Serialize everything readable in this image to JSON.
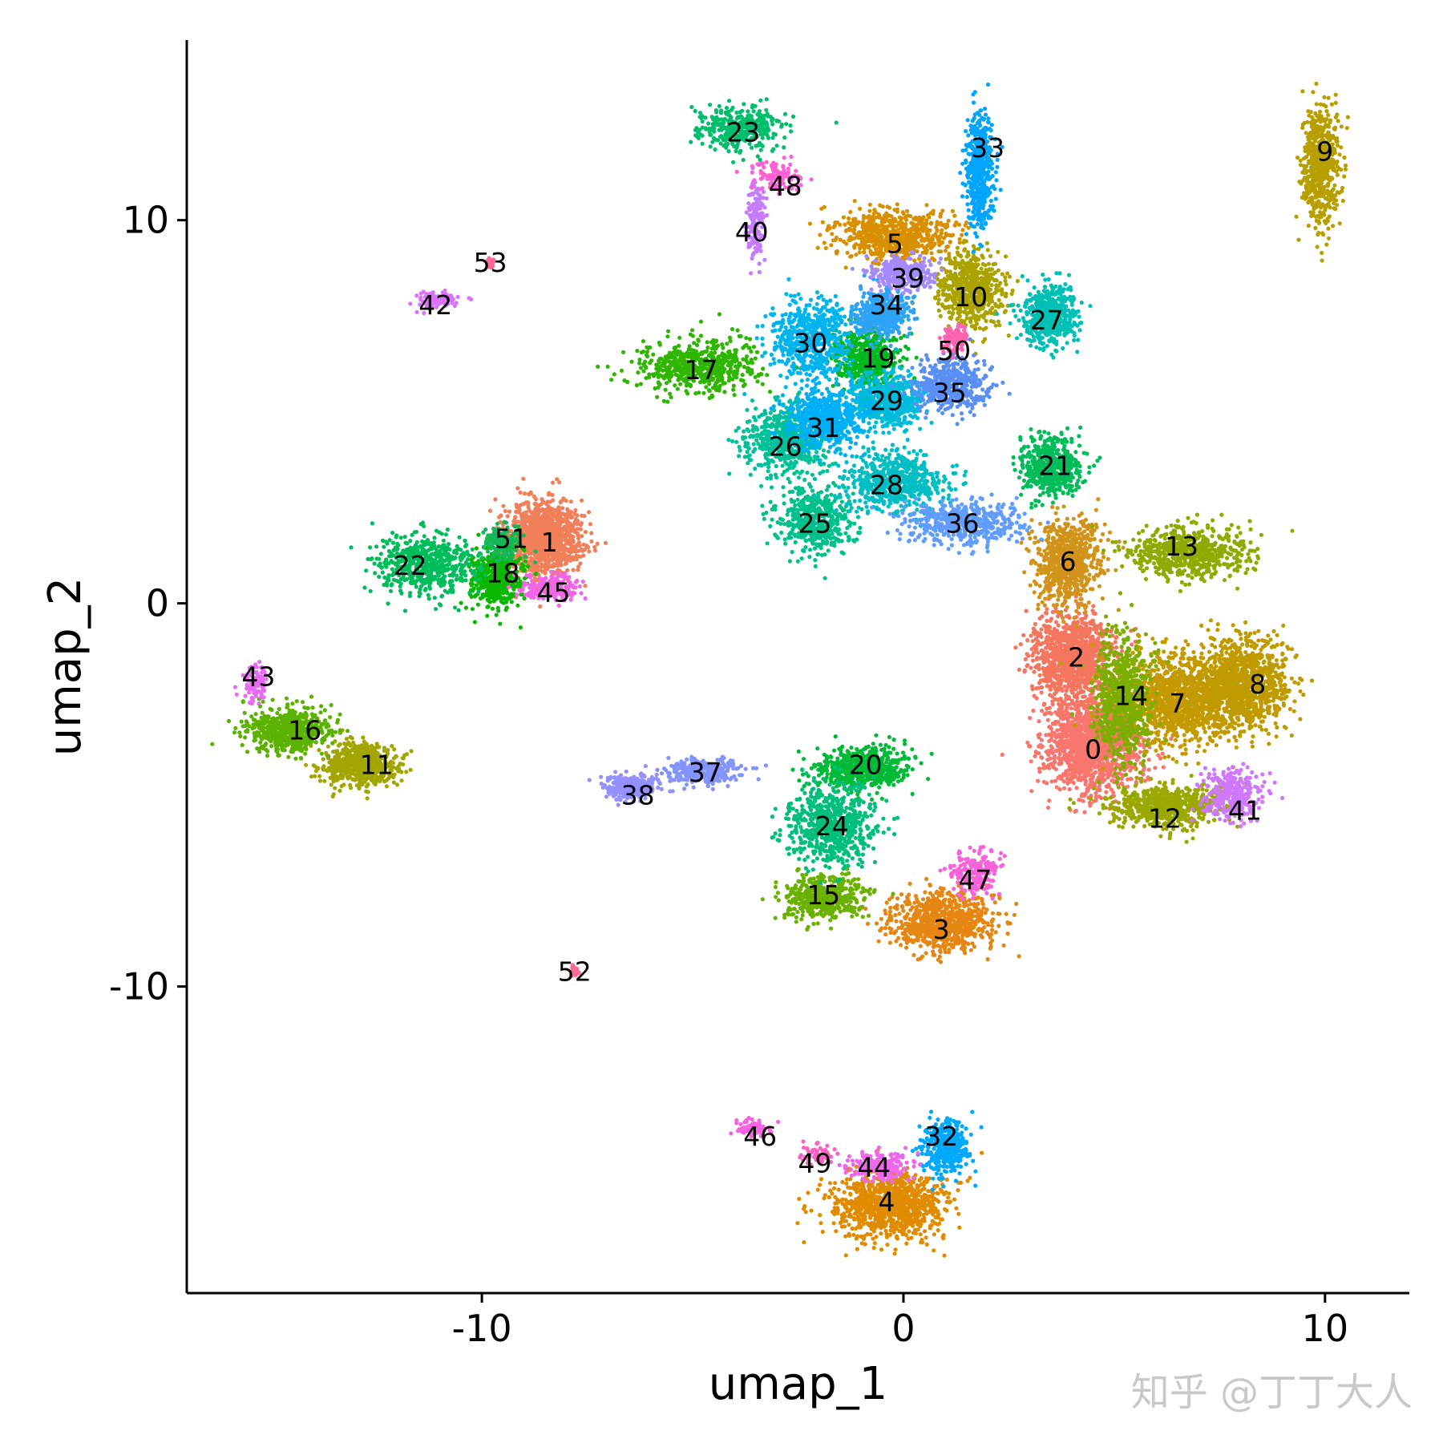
{
  "chart_data": {
    "type": "scatter",
    "xlabel": "umap_1",
    "ylabel": "umap_2",
    "xlim": [
      -17,
      12
    ],
    "ylim": [
      -18,
      14.7
    ],
    "xticks": [
      -10,
      0,
      10
    ],
    "yticks": [
      10,
      0,
      -10
    ],
    "xtick_labels": [
      "-10",
      "0",
      "10"
    ],
    "ytick_labels": [
      "10",
      "0",
      "-10"
    ],
    "grid": false,
    "legend": "none",
    "clusters": [
      {
        "id": "0",
        "x": 4.5,
        "y": -3.7,
        "sx": 1.0,
        "sy": 1.1,
        "n": 1500,
        "color": "#F8766D"
      },
      {
        "id": "1",
        "x": -8.5,
        "y": 1.7,
        "sx": 0.8,
        "sy": 0.9,
        "n": 1100,
        "color": "#F07F5A"
      },
      {
        "id": "2",
        "x": 4.0,
        "y": -1.4,
        "sx": 0.9,
        "sy": 1.0,
        "n": 1100,
        "color": "#F4765F"
      },
      {
        "id": "3",
        "x": 0.9,
        "y": -8.3,
        "sx": 1.1,
        "sy": 0.7,
        "n": 800,
        "color": "#E68613"
      },
      {
        "id": "4",
        "x": -0.3,
        "y": -15.7,
        "sx": 1.2,
        "sy": 0.8,
        "n": 1000,
        "color": "#E08B00"
      },
      {
        "id": "5",
        "x": -0.2,
        "y": 9.6,
        "sx": 1.3,
        "sy": 0.6,
        "n": 700,
        "color": "#D89000"
      },
      {
        "id": "6",
        "x": 3.9,
        "y": 1.1,
        "sx": 0.7,
        "sy": 1.0,
        "n": 700,
        "color": "#D2931A"
      },
      {
        "id": "7",
        "x": 6.5,
        "y": -2.5,
        "sx": 1.4,
        "sy": 1.1,
        "n": 1300,
        "color": "#C49A00"
      },
      {
        "id": "8",
        "x": 8.1,
        "y": -2.1,
        "sx": 1.0,
        "sy": 1.0,
        "n": 1000,
        "color": "#C09B00"
      },
      {
        "id": "9",
        "x": 9.9,
        "y": 11.4,
        "sx": 0.4,
        "sy": 1.4,
        "n": 600,
        "color": "#B79F00"
      },
      {
        "id": "10",
        "x": 1.6,
        "y": 8.2,
        "sx": 0.7,
        "sy": 0.9,
        "n": 600,
        "color": "#ABA300"
      },
      {
        "id": "11",
        "x": -12.9,
        "y": -4.2,
        "sx": 0.8,
        "sy": 0.5,
        "n": 600,
        "color": "#A3A500"
      },
      {
        "id": "12",
        "x": 6.2,
        "y": -5.3,
        "sx": 1.2,
        "sy": 0.5,
        "n": 700,
        "color": "#9BA800"
      },
      {
        "id": "13",
        "x": 6.8,
        "y": 1.3,
        "sx": 1.2,
        "sy": 0.6,
        "n": 700,
        "color": "#8FAA00"
      },
      {
        "id": "14",
        "x": 5.2,
        "y": -2.5,
        "sx": 0.6,
        "sy": 1.5,
        "n": 700,
        "color": "#7CAE00"
      },
      {
        "id": "15",
        "x": -1.9,
        "y": -7.7,
        "sx": 0.8,
        "sy": 0.5,
        "n": 500,
        "color": "#6BB100"
      },
      {
        "id": "16",
        "x": -14.6,
        "y": -3.3,
        "sx": 0.9,
        "sy": 0.5,
        "n": 600,
        "color": "#5BB300"
      },
      {
        "id": "17",
        "x": -4.9,
        "y": 6.2,
        "sx": 1.3,
        "sy": 0.6,
        "n": 600,
        "color": "#2FB600"
      },
      {
        "id": "18",
        "x": -9.6,
        "y": 0.7,
        "sx": 0.6,
        "sy": 0.7,
        "n": 500,
        "color": "#0CB702"
      },
      {
        "id": "19",
        "x": -0.9,
        "y": 6.4,
        "sx": 0.7,
        "sy": 0.7,
        "n": 500,
        "color": "#00B81F"
      },
      {
        "id": "20",
        "x": -1.0,
        "y": -4.3,
        "sx": 1.0,
        "sy": 0.5,
        "n": 600,
        "color": "#00BA38"
      },
      {
        "id": "21",
        "x": 3.5,
        "y": 3.6,
        "sx": 0.6,
        "sy": 0.7,
        "n": 500,
        "color": "#00BC59"
      },
      {
        "id": "22",
        "x": -11.3,
        "y": 1.0,
        "sx": 1.0,
        "sy": 0.7,
        "n": 600,
        "color": "#00BD5C"
      },
      {
        "id": "23",
        "x": -3.9,
        "y": 12.4,
        "sx": 0.9,
        "sy": 0.5,
        "n": 400,
        "color": "#00BE6C"
      },
      {
        "id": "24",
        "x": -1.7,
        "y": -5.8,
        "sx": 0.9,
        "sy": 0.9,
        "n": 700,
        "color": "#00BF7D"
      },
      {
        "id": "25",
        "x": -2.1,
        "y": 2.2,
        "sx": 0.8,
        "sy": 0.8,
        "n": 500,
        "color": "#00C08B"
      },
      {
        "id": "26",
        "x": -2.8,
        "y": 4.3,
        "sx": 0.9,
        "sy": 0.8,
        "n": 600,
        "color": "#00C19A"
      },
      {
        "id": "27",
        "x": 3.5,
        "y": 7.5,
        "sx": 0.6,
        "sy": 0.7,
        "n": 500,
        "color": "#00C0B5"
      },
      {
        "id": "28",
        "x": -0.2,
        "y": 3.2,
        "sx": 1.1,
        "sy": 0.7,
        "n": 600,
        "color": "#00BFC4"
      },
      {
        "id": "29",
        "x": -0.4,
        "y": 5.3,
        "sx": 0.8,
        "sy": 0.6,
        "n": 600,
        "color": "#00BBDB"
      },
      {
        "id": "30",
        "x": -2.2,
        "y": 6.9,
        "sx": 0.9,
        "sy": 0.9,
        "n": 600,
        "color": "#00B4EF"
      },
      {
        "id": "31",
        "x": -1.9,
        "y": 4.8,
        "sx": 0.8,
        "sy": 0.7,
        "n": 600,
        "color": "#00B0F6"
      },
      {
        "id": "32",
        "x": 1.0,
        "y": -14.2,
        "sx": 0.5,
        "sy": 0.6,
        "n": 400,
        "color": "#00A9FF"
      },
      {
        "id": "33",
        "x": 1.8,
        "y": 11.3,
        "sx": 0.3,
        "sy": 1.4,
        "n": 500,
        "color": "#00A5FF"
      },
      {
        "id": "34",
        "x": -0.5,
        "y": 7.6,
        "sx": 0.6,
        "sy": 0.6,
        "n": 500,
        "color": "#2DA3F5"
      },
      {
        "id": "35",
        "x": 1.1,
        "y": 5.7,
        "sx": 0.8,
        "sy": 0.6,
        "n": 500,
        "color": "#5A8FF5"
      },
      {
        "id": "36",
        "x": 1.4,
        "y": 2.1,
        "sx": 1.2,
        "sy": 0.5,
        "n": 500,
        "color": "#619CFF"
      },
      {
        "id": "37",
        "x": -4.7,
        "y": -4.4,
        "sx": 0.8,
        "sy": 0.3,
        "n": 300,
        "color": "#8494FF"
      },
      {
        "id": "38",
        "x": -6.5,
        "y": -4.8,
        "sx": 0.6,
        "sy": 0.3,
        "n": 300,
        "color": "#9590FF"
      },
      {
        "id": "39",
        "x": 0.0,
        "y": 8.6,
        "sx": 0.7,
        "sy": 0.4,
        "n": 300,
        "color": "#A58AFF"
      },
      {
        "id": "40",
        "x": -3.5,
        "y": 10.0,
        "sx": 0.2,
        "sy": 0.9,
        "n": 150,
        "color": "#C77CFF"
      },
      {
        "id": "41",
        "x": 7.8,
        "y": -5.0,
        "sx": 0.6,
        "sy": 0.6,
        "n": 300,
        "color": "#CF78FF"
      },
      {
        "id": "42",
        "x": -11.1,
        "y": 7.9,
        "sx": 0.5,
        "sy": 0.2,
        "n": 100,
        "color": "#DA72FB"
      },
      {
        "id": "43",
        "x": -15.4,
        "y": -2.1,
        "sx": 0.3,
        "sy": 0.5,
        "n": 100,
        "color": "#E76BF3"
      },
      {
        "id": "44",
        "x": -0.6,
        "y": -14.7,
        "sx": 0.7,
        "sy": 0.3,
        "n": 250,
        "color": "#ED68ED"
      },
      {
        "id": "45",
        "x": -8.4,
        "y": 0.4,
        "sx": 0.6,
        "sy": 0.3,
        "n": 200,
        "color": "#F265E7"
      },
      {
        "id": "46",
        "x": -3.6,
        "y": -13.7,
        "sx": 0.4,
        "sy": 0.2,
        "n": 80,
        "color": "#F564E3"
      },
      {
        "id": "47",
        "x": 1.7,
        "y": -7.0,
        "sx": 0.5,
        "sy": 0.5,
        "n": 200,
        "color": "#FA62DB"
      },
      {
        "id": "48",
        "x": -3.0,
        "y": 11.2,
        "sx": 0.5,
        "sy": 0.4,
        "n": 120,
        "color": "#FC61D5"
      },
      {
        "id": "49",
        "x": -2.0,
        "y": -14.4,
        "sx": 0.3,
        "sy": 0.2,
        "n": 60,
        "color": "#FF61C3"
      },
      {
        "id": "50",
        "x": 1.2,
        "y": 6.9,
        "sx": 0.3,
        "sy": 0.3,
        "n": 120,
        "color": "#FF64B0"
      },
      {
        "id": "51",
        "x": -9.5,
        "y": 1.6,
        "sx": 0.5,
        "sy": 0.4,
        "n": 150,
        "color": "#14B85A"
      },
      {
        "id": "52",
        "x": -7.8,
        "y": -9.6,
        "sx": 0.1,
        "sy": 0.15,
        "n": 30,
        "color": "#FF6C91"
      },
      {
        "id": "53",
        "x": -9.8,
        "y": 8.9,
        "sx": 0.1,
        "sy": 0.1,
        "n": 30,
        "color": "#FF6A98"
      }
    ],
    "label_positions": {
      "0": [
        4.5,
        -3.8
      ],
      "1": [
        -8.4,
        1.6
      ],
      "2": [
        4.1,
        -1.4
      ],
      "3": [
        0.9,
        -8.5
      ],
      "4": [
        -0.4,
        -15.6
      ],
      "5": [
        -0.2,
        9.4
      ],
      "6": [
        3.9,
        1.1
      ],
      "7": [
        6.5,
        -2.6
      ],
      "8": [
        8.4,
        -2.1
      ],
      "9": [
        10.0,
        11.8
      ],
      "10": [
        1.6,
        8.0
      ],
      "11": [
        -12.5,
        -4.2
      ],
      "12": [
        6.2,
        -5.6
      ],
      "13": [
        6.6,
        1.5
      ],
      "14": [
        5.4,
        -2.4
      ],
      "15": [
        -1.9,
        -7.6
      ],
      "16": [
        -14.2,
        -3.3
      ],
      "17": [
        -4.8,
        6.1
      ],
      "18": [
        -9.5,
        0.8
      ],
      "19": [
        -0.6,
        6.4
      ],
      "20": [
        -0.9,
        -4.2
      ],
      "21": [
        3.6,
        3.6
      ],
      "22": [
        -11.7,
        1.0
      ],
      "23": [
        -3.8,
        12.3
      ],
      "24": [
        -1.7,
        -5.8
      ],
      "25": [
        -2.1,
        2.1
      ],
      "26": [
        -2.8,
        4.1
      ],
      "27": [
        3.4,
        7.4
      ],
      "28": [
        -0.4,
        3.1
      ],
      "29": [
        -0.4,
        5.3
      ],
      "30": [
        -2.2,
        6.8
      ],
      "31": [
        -1.9,
        4.6
      ],
      "32": [
        0.9,
        -13.9
      ],
      "33": [
        2.0,
        11.9
      ],
      "34": [
        -0.4,
        7.8
      ],
      "35": [
        1.1,
        5.5
      ],
      "36": [
        1.4,
        2.1
      ],
      "37": [
        -4.7,
        -4.4
      ],
      "38": [
        -6.3,
        -5.0
      ],
      "39": [
        0.1,
        8.5
      ],
      "40": [
        -3.6,
        9.7
      ],
      "41": [
        8.1,
        -5.4
      ],
      "42": [
        -11.1,
        7.8
      ],
      "43": [
        -15.3,
        -1.9
      ],
      "44": [
        -0.7,
        -14.7
      ],
      "45": [
        -8.3,
        0.3
      ],
      "46": [
        -3.4,
        -13.9
      ],
      "47": [
        1.7,
        -7.2
      ],
      "48": [
        -2.8,
        10.9
      ],
      "49": [
        -2.1,
        -14.6
      ],
      "50": [
        1.2,
        6.6
      ],
      "51": [
        -9.3,
        1.7
      ],
      "52": [
        -7.8,
        -9.6
      ],
      "53": [
        -9.8,
        8.9
      ]
    }
  },
  "watermark": "知乎 @丁丁大人"
}
